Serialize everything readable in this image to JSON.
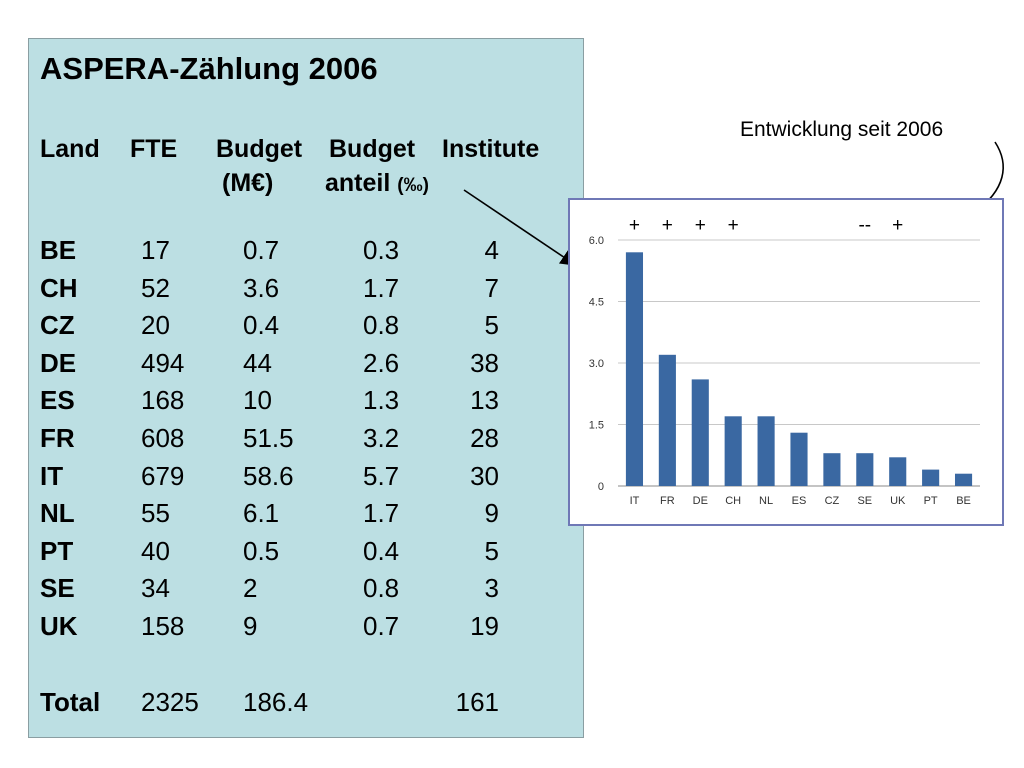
{
  "panel": {
    "title": "ASPERA-Zählung 2006",
    "headers": {
      "land": "Land",
      "fte": "FTE",
      "budget": "Budget",
      "budget_sub": "(M€)",
      "budget2": "Budget",
      "budget2_sub": "anteil",
      "budget2_unit": "(‰)",
      "institute": "Institute"
    },
    "rows": [
      {
        "land": "BE",
        "fte": "17",
        "budget": "0.7",
        "anteil": "0.3",
        "inst": "4"
      },
      {
        "land": "CH",
        "fte": "52",
        "budget": "3.6",
        "anteil": "1.7",
        "inst": "7"
      },
      {
        "land": "CZ",
        "fte": "20",
        "budget": "0.4",
        "anteil": "0.8",
        "inst": "5"
      },
      {
        "land": "DE",
        "fte": "494",
        "budget": "44",
        "anteil": "2.6",
        "inst": "38"
      },
      {
        "land": "ES",
        "fte": "168",
        "budget": "10",
        "anteil": "1.3",
        "inst": "13"
      },
      {
        "land": "FR",
        "fte": "608",
        "budget": "51.5",
        "anteil": "3.2",
        "inst": "28"
      },
      {
        "land": "IT",
        "fte": "679",
        "budget": "58.6",
        "anteil": "5.7",
        "inst": "30"
      },
      {
        "land": "NL",
        "fte": "55",
        "budget": "6.1",
        "anteil": "1.7",
        "inst": "9"
      },
      {
        "land": "PT",
        "fte": "40",
        "budget": "0.5",
        "anteil": "0.4",
        "inst": "5"
      },
      {
        "land": "SE",
        "fte": "34",
        "budget": "2",
        "anteil": "0.8",
        "inst": "3"
      },
      {
        "land": "UK",
        "fte": "158",
        "budget": "9",
        "anteil": "0.7",
        "inst": "19"
      }
    ],
    "total": {
      "label": "Total",
      "fte": "2325",
      "budget": "186.4",
      "inst": "161"
    }
  },
  "note": "Entwicklung seit 2006",
  "chart_data": {
    "type": "bar",
    "categories": [
      "IT",
      "FR",
      "DE",
      "CH",
      "NL",
      "ES",
      "CZ",
      "SE",
      "UK",
      "PT",
      "BE"
    ],
    "values": [
      5.7,
      3.2,
      2.6,
      1.7,
      1.7,
      1.3,
      0.8,
      0.8,
      0.7,
      0.4,
      0.3
    ],
    "ylim": [
      0,
      6.0
    ],
    "yticks": [
      "0",
      "1.5",
      "3.0",
      "4.5",
      "6.0"
    ],
    "ytick_values": [
      0,
      1.5,
      3.0,
      4.5,
      6.0
    ],
    "grid": true,
    "bar_color": "#3a68a2",
    "trend_marks": [
      "+",
      "+",
      "+",
      "+",
      "",
      "",
      "",
      "--",
      "+",
      "",
      ""
    ],
    "title": "",
    "xlabel": "",
    "ylabel": ""
  }
}
